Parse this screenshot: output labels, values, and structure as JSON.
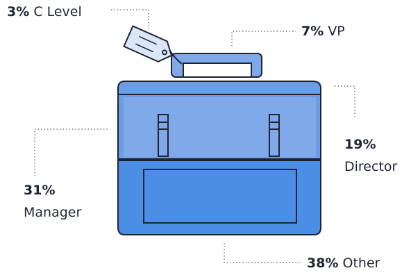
{
  "segments": [
    {
      "key": "c_level",
      "percent": "3%",
      "label": "C Level"
    },
    {
      "key": "vp",
      "percent": "7%",
      "label": "VP"
    },
    {
      "key": "director",
      "percent": "19%",
      "label": "Director"
    },
    {
      "key": "manager",
      "percent": "31%",
      "label": "Manager"
    },
    {
      "key": "other",
      "percent": "38%",
      "label": "Other"
    }
  ],
  "colors": {
    "outline": "#1f2430",
    "light_blue": "#7fa9e8",
    "mid_blue": "#6a9de6",
    "deep_blue": "#4a8ee6",
    "tag_fill": "#dbe7f8",
    "leader_line": "#555a66"
  }
}
